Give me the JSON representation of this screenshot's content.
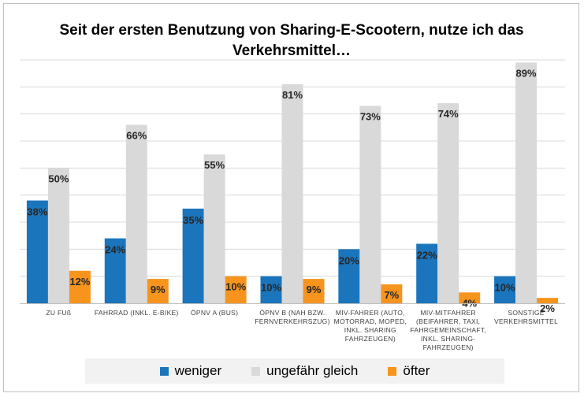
{
  "chart_data": {
    "type": "bar",
    "title_line1": "Seit der ersten Benutzung von Sharing-E-Scootern, nutze ich das",
    "title_line2": "Verkehrsmittel…",
    "categories": [
      [
        "ZU FUß"
      ],
      [
        "FAHRRAD (INKL. E-BIKE)"
      ],
      [
        "ÖPNV A (BUS)"
      ],
      [
        "ÖPNV B (NAH BZW.",
        "FERNVERKEHRSZUG)"
      ],
      [
        "MIV-FAHRER (AUTO,",
        "MOTORRAD, MOPED,",
        "INKL. SHARING",
        "FAHRZEUGEN)"
      ],
      [
        "MIV-MITFAHRER",
        "(BEIFAHRER, TAXI,",
        "FAHRGEMEINSCHAFT,",
        "INKL. SHARING-",
        "FAHRZEUGEN)"
      ],
      [
        "SONSTIGE",
        "VERKEHRSMITTEL"
      ]
    ],
    "series": [
      {
        "name": "weniger",
        "color": "#1b75bc",
        "values": [
          38,
          24,
          35,
          10,
          20,
          22,
          10
        ],
        "labels": [
          "38%",
          "24%",
          "35%",
          "10%",
          "20%",
          "22%",
          "10%"
        ]
      },
      {
        "name": "ungefähr gleich",
        "color": "#d9d9d9",
        "values": [
          50,
          66,
          55,
          81,
          73,
          74,
          89
        ],
        "labels": [
          "50%",
          "66%",
          "55%",
          "81%",
          "73%",
          "74%",
          "89%"
        ]
      },
      {
        "name": "öfter",
        "color": "#f7941d",
        "values": [
          12,
          9,
          10,
          9,
          7,
          4,
          2
        ],
        "labels": [
          "12%",
          "9%",
          "10%",
          "9%",
          "7%",
          "4%",
          "2%"
        ]
      }
    ],
    "ylim": [
      0,
      90
    ],
    "grid": true,
    "legend_position": "bottom"
  }
}
